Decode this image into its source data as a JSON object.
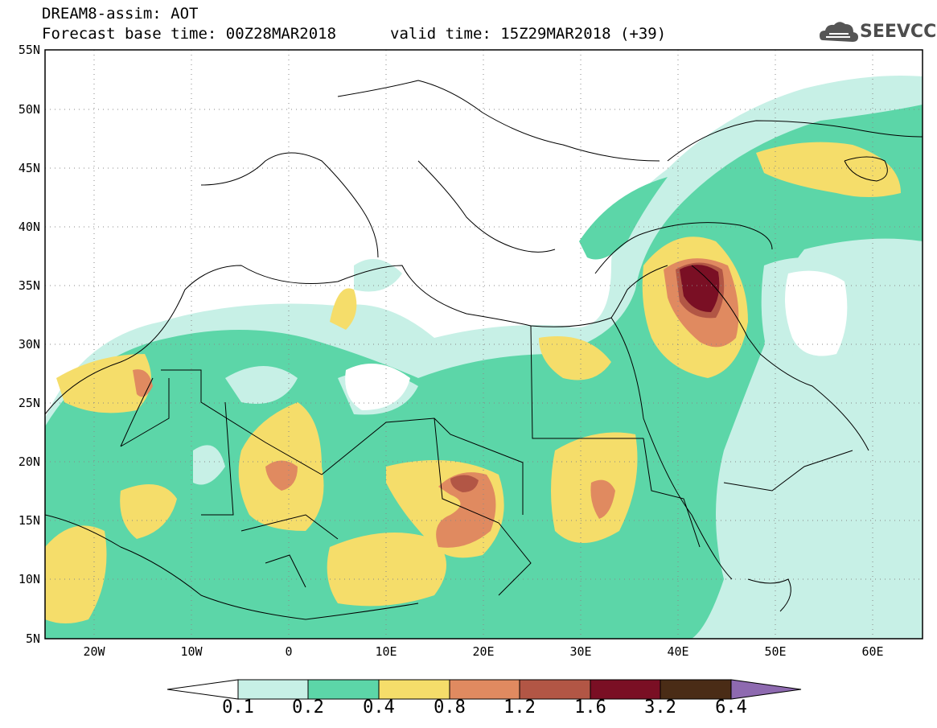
{
  "header": {
    "title": "DREAM8-assim: AOT",
    "base_time": "Forecast base time: 00Z28MAR2018",
    "valid_time": "valid time: 15Z29MAR2018 (+39)",
    "logo_text": "SEEVCCC"
  },
  "map": {
    "lon_range": [
      -25,
      65
    ],
    "lat_range": [
      5,
      55
    ],
    "lat_labels": [
      "55N",
      "50N",
      "45N",
      "40N",
      "35N",
      "30N",
      "25N",
      "20N",
      "15N",
      "10N",
      "5N"
    ],
    "lon_labels": [
      "20W",
      "10W",
      "0",
      "10E",
      "20E",
      "30E",
      "40E",
      "50E",
      "60E"
    ],
    "land_color": "#ffffff",
    "boundary_color": "#000000"
  },
  "colorbar": {
    "levels": [
      "0.1",
      "0.2",
      "0.4",
      "0.8",
      "1.2",
      "1.6",
      "3.2",
      "6.4"
    ],
    "colors": [
      "#c7f0e6",
      "#5cd6a8",
      "#f5dd6a",
      "#e08a60",
      "#b25645",
      "#7a0f24",
      "#4a2c16",
      "#8e6ab0"
    ]
  }
}
